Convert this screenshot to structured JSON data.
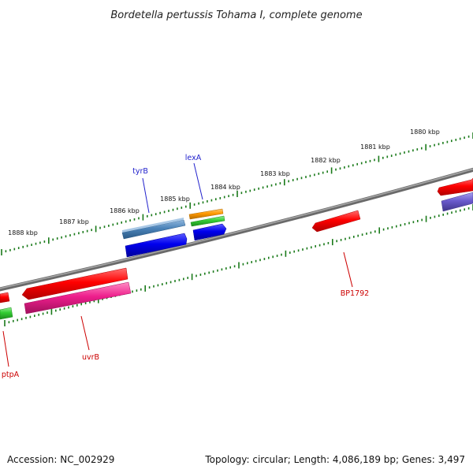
{
  "title": "Bordetella pertussis Tohama I, complete genome",
  "footer": {
    "accession": "Accession: NC_002929",
    "summary": "Topology: circular; Length: 4,086,189 bp; Genes: 3,497"
  },
  "ticks": [
    {
      "label": "1880 kbp"
    },
    {
      "label": "1881 kbp"
    },
    {
      "label": "1882 kbp"
    },
    {
      "label": "1883 kbp"
    },
    {
      "label": "1884 kbp"
    },
    {
      "label": "1885 kbp"
    },
    {
      "label": "1886 kbp"
    },
    {
      "label": "1887 kbp"
    },
    {
      "label": "1888 kbp"
    }
  ],
  "genes": [
    {
      "name": "tyrB",
      "color": "#2222cc"
    },
    {
      "name": "lexA",
      "color": "#2222cc"
    },
    {
      "name": "BP1792",
      "color": "#cc0000"
    },
    {
      "name": "uvrB",
      "color": "#cc0000"
    },
    {
      "name": "ptpA",
      "color": "#cc0000"
    }
  ],
  "colors": {
    "backbone": "#888888",
    "tick": "#1a7a1a",
    "red": "#ff0000",
    "blue": "#0000ee",
    "steelblue": "#4a82b8",
    "magenta": "#ee1e8c",
    "green": "#33cc33",
    "orange": "#ff9900",
    "purple": "#6a5acd"
  }
}
